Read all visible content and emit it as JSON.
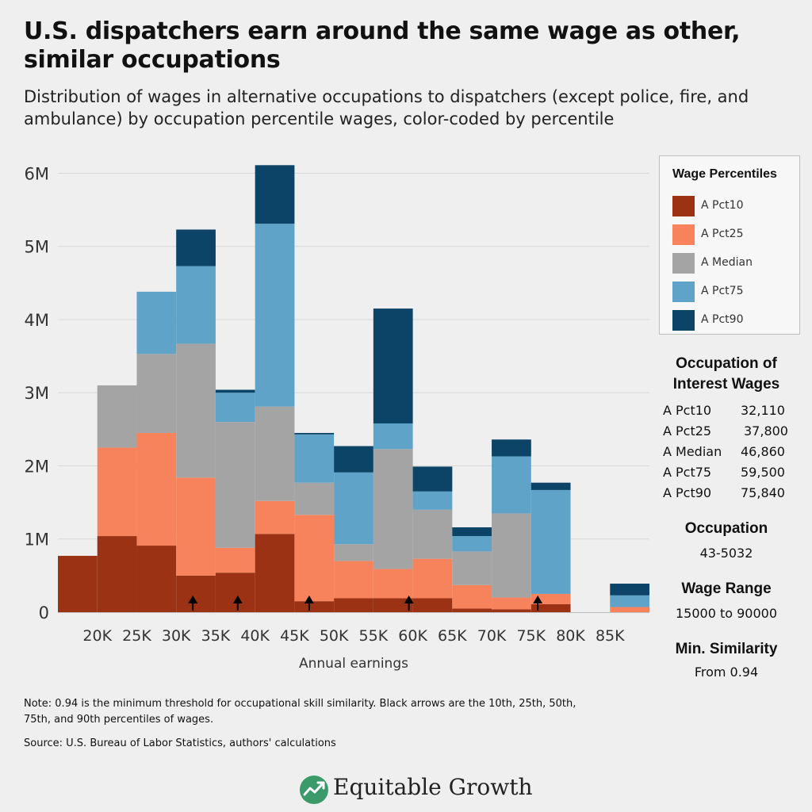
{
  "title": "U.S. dispatchers earn around the same wage as other, similar occupations",
  "subtitle": "Distribution of wages in alternative occupations to dispatchers (except police, fire, and ambulance) by occupation percentile wages, color-coded by percentile",
  "legend": {
    "title": "Wage Percentiles",
    "items": [
      {
        "label": "A Pct10",
        "color": "#9b3214"
      },
      {
        "label": "A Pct25",
        "color": "#f6835c"
      },
      {
        "label": "A Median",
        "color": "#a4a4a4"
      },
      {
        "label": "A Pct75",
        "color": "#5fa3c9"
      },
      {
        "label": "A Pct90",
        "color": "#0b4466"
      }
    ]
  },
  "interest": {
    "title_line1": "Occupation of",
    "title_line2": "Interest Wages",
    "rows": [
      {
        "label": "A Pct10",
        "value": "32,110"
      },
      {
        "label": "A Pct25",
        "value": "37,800"
      },
      {
        "label": "A Median",
        "value": "46,860"
      },
      {
        "label": "A Pct75",
        "value": "59,500"
      },
      {
        "label": "A Pct90",
        "value": "75,840"
      }
    ]
  },
  "occupation": {
    "title": "Occupation",
    "value": "43-5032"
  },
  "wage_range": {
    "title": "Wage Range",
    "value": "15000 to 90000"
  },
  "similarity": {
    "title": "Min. Similarity",
    "value": "From 0.94"
  },
  "note": "Note: 0.94 is the minimum threshold for occupational skill similarity. Black arrows are the 10th, 25th, 50th, 75th, and 90th percentiles of wages.",
  "source": "Source: U.S. Bureau of Labor Statistics, authors' calculations",
  "brand": {
    "name": "Equitable Growth"
  },
  "chart_data": {
    "type": "bar",
    "stacked": true,
    "title": "",
    "xlabel": "Annual earnings",
    "ylabel": "",
    "bin_start": 15000,
    "bin_width": 5000,
    "xlim": [
      15000,
      90000
    ],
    "ylim": [
      0,
      6200000
    ],
    "y_ticks": [
      0,
      1000000,
      2000000,
      3000000,
      4000000,
      5000000,
      6000000
    ],
    "y_tick_labels": [
      "0",
      "1M",
      "2M",
      "3M",
      "4M",
      "5M",
      "6M"
    ],
    "x_ticks": [
      20000,
      25000,
      30000,
      35000,
      40000,
      45000,
      50000,
      55000,
      60000,
      65000,
      70000,
      75000,
      80000,
      85000
    ],
    "x_tick_labels": [
      "20K",
      "25K",
      "30K",
      "35K",
      "40K",
      "45K",
      "50K",
      "55K",
      "60K",
      "65K",
      "70K",
      "75K",
      "80K",
      "85K"
    ],
    "categories": [
      "15K-20K",
      "20K-25K",
      "25K-30K",
      "30K-35K",
      "35K-40K",
      "40K-45K",
      "45K-50K",
      "50K-55K",
      "55K-60K",
      "60K-65K",
      "65K-70K",
      "70K-75K",
      "75K-80K",
      "80K-85K",
      "85K-90K"
    ],
    "series": [
      {
        "name": "A Pct10",
        "color": "#9b3214",
        "values": [
          770000,
          1040000,
          910000,
          500000,
          540000,
          1070000,
          150000,
          190000,
          190000,
          190000,
          50000,
          40000,
          110000,
          0,
          0
        ]
      },
      {
        "name": "A Pct25",
        "color": "#f6835c",
        "values": [
          0,
          1210000,
          1540000,
          1340000,
          340000,
          450000,
          1180000,
          510000,
          400000,
          540000,
          320000,
          160000,
          140000,
          0,
          70000
        ]
      },
      {
        "name": "A Median",
        "color": "#a4a4a4",
        "values": [
          0,
          850000,
          1080000,
          1830000,
          1720000,
          1290000,
          440000,
          230000,
          1640000,
          670000,
          460000,
          1150000,
          0,
          0,
          0
        ]
      },
      {
        "name": "A Pct75",
        "color": "#5fa3c9",
        "values": [
          0,
          0,
          850000,
          1060000,
          400000,
          2500000,
          660000,
          980000,
          350000,
          250000,
          210000,
          780000,
          1420000,
          0,
          160000
        ]
      },
      {
        "name": "A Pct90",
        "color": "#0b4466",
        "values": [
          0,
          0,
          0,
          500000,
          40000,
          800000,
          20000,
          360000,
          1570000,
          340000,
          120000,
          230000,
          100000,
          0,
          160000
        ]
      }
    ],
    "arrows": [
      32110,
      37800,
      46860,
      59500,
      75840
    ],
    "grid": true
  }
}
